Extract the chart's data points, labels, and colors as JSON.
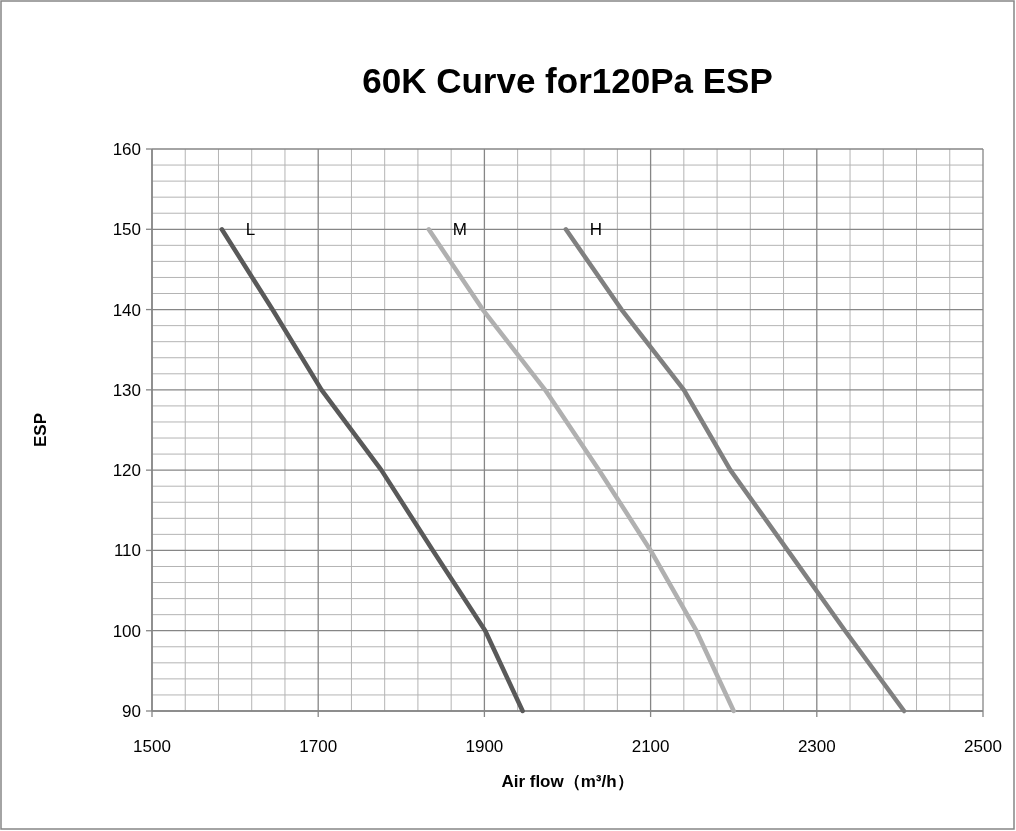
{
  "chart_data": {
    "type": "line",
    "title": "60K Curve for120Pa ESP",
    "xlabel": "Air flow（m³/h）",
    "ylabel": "ESP",
    "xlim": [
      1500,
      2500
    ],
    "xticks": [
      1500,
      1700,
      1900,
      2100,
      2300,
      2500
    ],
    "ylim": [
      90,
      160
    ],
    "yticks": [
      90,
      100,
      110,
      120,
      130,
      140,
      150,
      160
    ],
    "grid": true,
    "marker": "none",
    "line_style": "solid",
    "series": [
      {
        "name": "L",
        "color": "#595959",
        "x": [
          1584,
          1645,
          1704,
          1776,
          1838,
          1901,
          1946
        ],
        "values": [
          150,
          140,
          130,
          120,
          110,
          100,
          90
        ]
      },
      {
        "name": "M",
        "color": "#b0b0b0",
        "x": [
          1833,
          1898,
          1973,
          2038,
          2100,
          2155,
          2200
        ],
        "values": [
          150,
          140,
          130,
          120,
          110,
          100,
          90
        ]
      },
      {
        "name": "H",
        "color": "#808080",
        "x": [
          1998,
          2065,
          2140,
          2196,
          2265,
          2334,
          2405
        ],
        "values": [
          150,
          140,
          130,
          120,
          110,
          100,
          90
        ]
      }
    ]
  }
}
